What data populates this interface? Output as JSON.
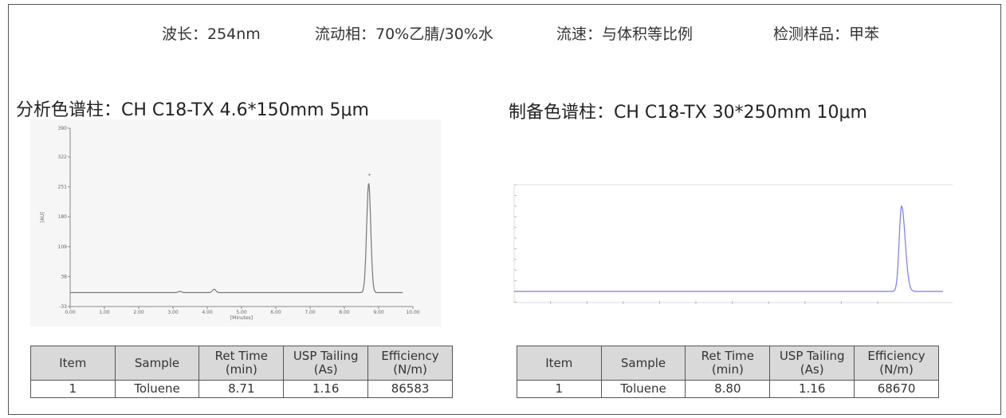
{
  "conditions": {
    "wavelength": "波长：254nm",
    "mobile_phase": "流动相：70%乙腈/30%水",
    "flow_rate": "流速：与体积等比例",
    "sample": "检测样品：甲苯"
  },
  "analytical": {
    "title": "分析色谱柱：CH  C18-TX  4.6*150mm 5μm",
    "table": {
      "headers": [
        "Item",
        "Sample",
        "Ret Time\n(min)",
        "USP Tailing\n(As)",
        "Efficiency\n(N/m)"
      ],
      "row": [
        "1",
        "Toluene",
        "8.71",
        "1.16",
        "86583"
      ]
    }
  },
  "preparative": {
    "title": "制备色谱柱：CH  C18-TX  30*250mm 10μm",
    "table": {
      "headers": [
        "Item",
        "Sample",
        "Ret Time\n(min)",
        "USP Tailing\n(As)",
        "Efficiency\n(N/m)"
      ],
      "row": [
        "1",
        "Toluene",
        "8.80",
        "1.16",
        "68670"
      ]
    }
  },
  "chart_data": [
    {
      "type": "line",
      "xlabel": "[Minutes]",
      "ylabel": "[AU]",
      "xlim": [
        0,
        10
      ],
      "ylim": [
        -33,
        390
      ],
      "x_ticks": [
        "0.00",
        "1.00",
        "2.00",
        "3.00",
        "4.00",
        "5.00",
        "6.00",
        "7.00",
        "8.00",
        "9.00",
        "10.00"
      ],
      "y_ticks": [
        "-33",
        "38",
        "109",
        "180",
        "251",
        "322",
        "390"
      ],
      "peaks": [
        {
          "x": 3.2,
          "y": 3
        },
        {
          "x": 4.2,
          "y": 8
        },
        {
          "x": 8.71,
          "y": 259
        }
      ],
      "baseline": 0,
      "color": "#777777"
    },
    {
      "type": "line",
      "peaks": [
        {
          "x": 8.8,
          "relative_height": 0.8
        }
      ],
      "color": "#7b7bf0"
    }
  ]
}
